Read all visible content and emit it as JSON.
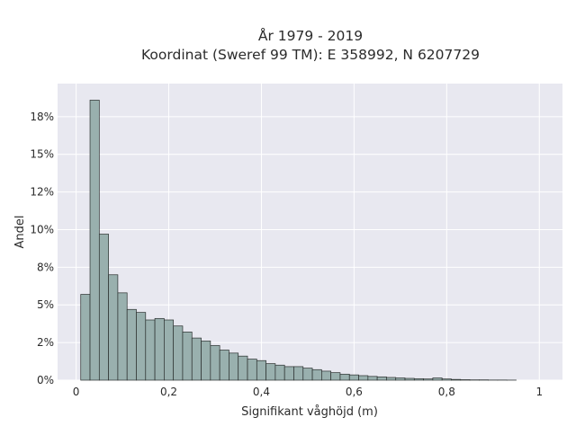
{
  "chart_data": {
    "type": "bar",
    "title_line1": "År 1979 - 2019",
    "title_line2": "Koordinat (Sweref 99 TM): E 358992, N 6207729",
    "xlabel": "Signifikant våghöjd (m)",
    "ylabel": "Andel",
    "xlim": [
      -0.04,
      1.05
    ],
    "ylim": [
      0,
      0.197
    ],
    "x_ticks": [
      {
        "value": 0,
        "label": "0"
      },
      {
        "value": 0.2,
        "label": "0,2"
      },
      {
        "value": 0.4,
        "label": "0,4"
      },
      {
        "value": 0.6,
        "label": "0,6"
      },
      {
        "value": 0.8,
        "label": "0,8"
      },
      {
        "value": 1,
        "label": "1"
      }
    ],
    "y_ticks": [
      {
        "value": 0,
        "label": "0%"
      },
      {
        "value": 0.025,
        "label": "2%"
      },
      {
        "value": 0.05,
        "label": "5%"
      },
      {
        "value": 0.075,
        "label": "8%"
      },
      {
        "value": 0.1,
        "label": "10%"
      },
      {
        "value": 0.125,
        "label": "12%"
      },
      {
        "value": 0.15,
        "label": "15%"
      },
      {
        "value": 0.175,
        "label": "18%"
      }
    ],
    "bin_width": 0.02,
    "bin_start": 0.01,
    "values": [
      0.057,
      0.186,
      0.097,
      0.07,
      0.058,
      0.047,
      0.045,
      0.04,
      0.041,
      0.04,
      0.036,
      0.032,
      0.028,
      0.026,
      0.023,
      0.02,
      0.018,
      0.016,
      0.014,
      0.013,
      0.011,
      0.01,
      0.009,
      0.009,
      0.008,
      0.007,
      0.006,
      0.005,
      0.004,
      0.0035,
      0.003,
      0.0025,
      0.0022,
      0.0018,
      0.0015,
      0.0012,
      0.001,
      0.0008,
      0.0015,
      0.0008,
      0.0005,
      0.0003,
      0.0002,
      0.0002,
      0.0001,
      0.0001,
      5e-05
    ],
    "grid": true,
    "colors": {
      "plot_background": "#e8e8f0",
      "grid": "#ffffff",
      "bar_fill": "#99b0ae",
      "bar_edge": "#2a2f2e"
    }
  }
}
